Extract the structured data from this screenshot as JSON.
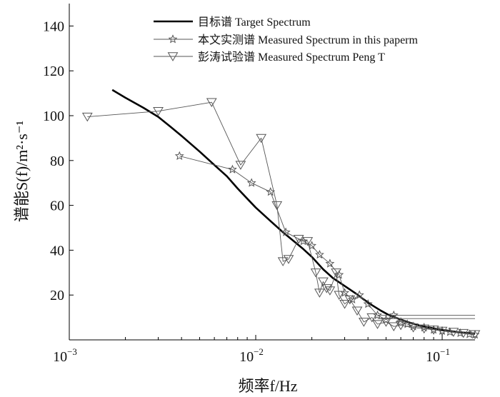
{
  "chart_data": {
    "type": "line",
    "title": "",
    "xlabel": "频率f/Hz",
    "ylabel": "谱能S(f)/m²·s⁻¹",
    "x_scale": "log",
    "xlim": [
      0.001,
      0.15
    ],
    "ylim": [
      0,
      150
    ],
    "x_ticks": [
      {
        "value": 0.001,
        "base": "10",
        "exp": "−3"
      },
      {
        "value": 0.01,
        "base": "10",
        "exp": "−2"
      },
      {
        "value": 0.1,
        "base": "10",
        "exp": "−1"
      }
    ],
    "y_ticks": [
      20,
      40,
      60,
      80,
      100,
      120,
      140
    ],
    "grid": false,
    "legend_position": "top",
    "series": [
      {
        "name": "目标谱 Target Spectrum",
        "marker": "none",
        "color": "#000000",
        "x": [
          0.0017,
          0.002,
          0.0025,
          0.003,
          0.0035,
          0.004,
          0.005,
          0.006,
          0.007,
          0.008,
          0.009,
          0.01,
          0.012,
          0.014,
          0.016,
          0.018,
          0.02,
          0.023,
          0.026,
          0.03,
          0.034,
          0.038,
          0.042,
          0.047,
          0.052,
          0.058,
          0.065,
          0.075,
          0.085,
          0.1,
          0.12,
          0.15
        ],
        "values": [
          111.5,
          108,
          103.5,
          99.5,
          95,
          91,
          84,
          78,
          73,
          67.5,
          63,
          59,
          53,
          48,
          44,
          40.5,
          37,
          31.5,
          27.5,
          24,
          21,
          18,
          15.5,
          13,
          11,
          9.5,
          8,
          6.5,
          5.5,
          4.5,
          3.5,
          2.8
        ]
      },
      {
        "name": "本文实测谱 Measured Spectrum in this paperm",
        "marker": "star",
        "color": "#555555",
        "x": [
          0.0039,
          0.0075,
          0.0095,
          0.012,
          0.0145,
          0.018,
          0.02,
          0.022,
          0.025,
          0.028,
          0.03,
          0.033,
          0.036,
          0.04,
          0.045,
          0.05,
          0.055,
          0.06,
          0.065,
          0.07,
          0.08,
          0.09,
          0.1,
          0.11,
          0.125,
          0.14,
          0.15
        ],
        "values": [
          82,
          76,
          70,
          66,
          48,
          44,
          42,
          38,
          34,
          29,
          21,
          18,
          20,
          16,
          11,
          9,
          11,
          8,
          7,
          6,
          5.5,
          4.5,
          4,
          3.5,
          3,
          2.5,
          2.3
        ],
        "end_level": 9.5
      },
      {
        "name": "彭涛试验谱 Measured Spectrum Peng T",
        "marker": "triangle-down",
        "color": "#555555",
        "x": [
          0.00125,
          0.003,
          0.0058,
          0.0083,
          0.0107,
          0.013,
          0.014,
          0.015,
          0.017,
          0.019,
          0.021,
          0.022,
          0.023,
          0.024,
          0.025,
          0.027,
          0.028,
          0.03,
          0.032,
          0.035,
          0.038,
          0.042,
          0.045,
          0.05,
          0.055,
          0.06,
          0.07,
          0.08,
          0.09,
          0.1,
          0.115,
          0.13,
          0.15
        ],
        "values": [
          99.5,
          102,
          106,
          78,
          90,
          60,
          35,
          36,
          45,
          44,
          30,
          21,
          26,
          23,
          22,
          30,
          20,
          16,
          18,
          13,
          8,
          10,
          7,
          8,
          6,
          6.5,
          5.5,
          5,
          4.5,
          4,
          3.5,
          3,
          2.5
        ],
        "end_level": 11
      }
    ]
  }
}
